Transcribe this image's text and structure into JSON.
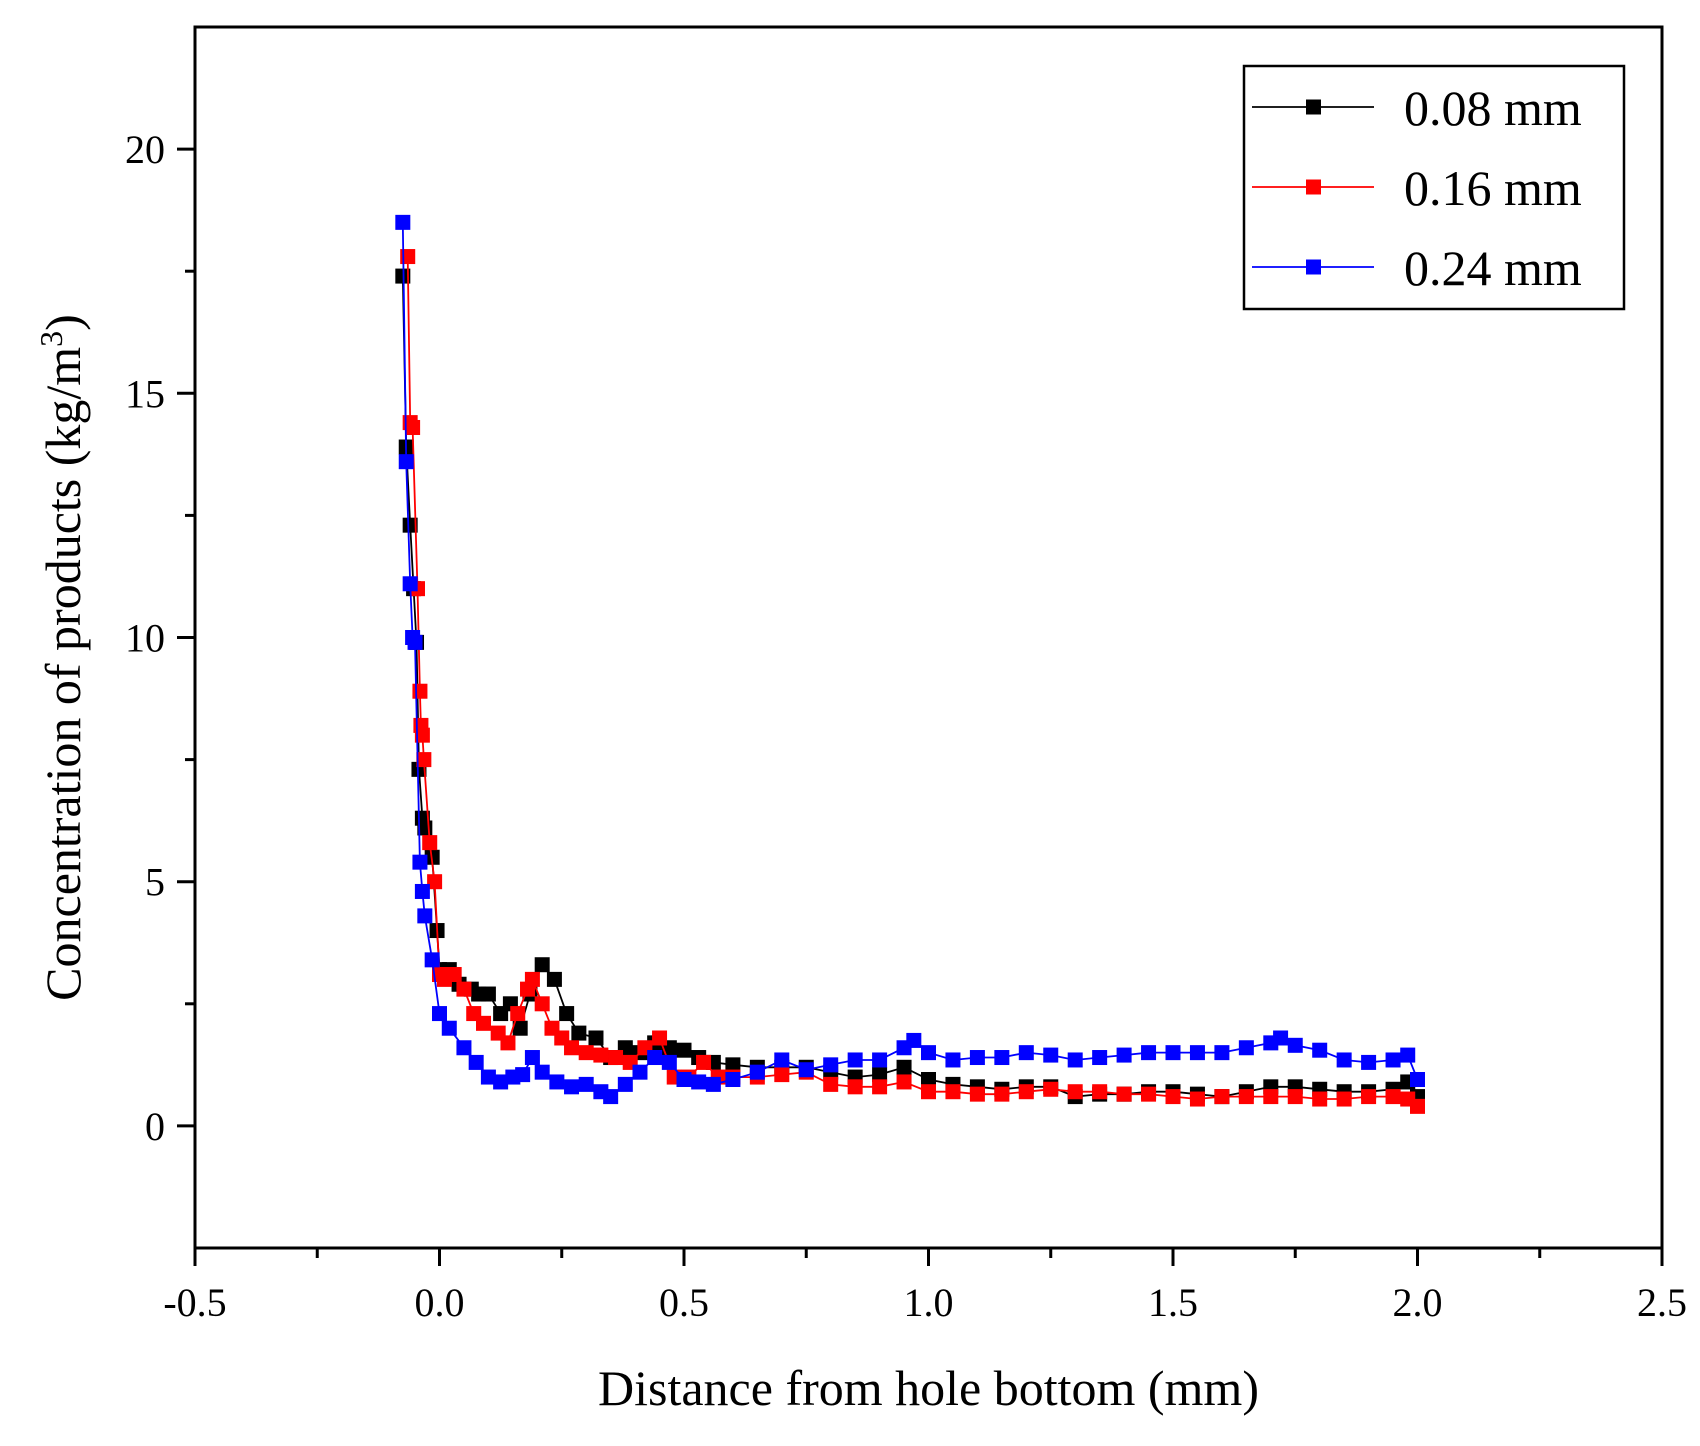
{
  "chart_data": {
    "type": "scatter",
    "title": "",
    "xlabel": "Distance from hole bottom (mm)",
    "ylabel_main": "Concentration of products (kg/m",
    "ylabel_sup": "3",
    "ylabel_end": ")",
    "xlim": [
      -0.5,
      2.5
    ],
    "ylim": [
      -2.5,
      22.5
    ],
    "xticks": [
      -0.5,
      0.0,
      0.5,
      1.0,
      1.5,
      2.0,
      2.5
    ],
    "xtick_labels": [
      "-0.5",
      "0.0",
      "0.5",
      "1.0",
      "1.5",
      "2.0",
      "2.5"
    ],
    "yticks": [
      0,
      5,
      10,
      15,
      20
    ],
    "ytick_labels": [
      "0",
      "5",
      "10",
      "15",
      "20"
    ],
    "grid": false,
    "legend_position": "top-right",
    "series": [
      {
        "name": "0.08 mm",
        "color": "#000000",
        "points": [
          [
            -0.075,
            17.4
          ],
          [
            -0.068,
            13.9
          ],
          [
            -0.06,
            12.3
          ],
          [
            -0.053,
            11.0
          ],
          [
            -0.047,
            9.9
          ],
          [
            -0.042,
            7.3
          ],
          [
            -0.035,
            6.3
          ],
          [
            -0.03,
            6.1
          ],
          [
            -0.015,
            5.5
          ],
          [
            -0.005,
            4.0
          ],
          [
            0.0,
            3.2
          ],
          [
            0.02,
            3.2
          ],
          [
            0.04,
            2.9
          ],
          [
            0.065,
            2.8
          ],
          [
            0.08,
            2.7
          ],
          [
            0.1,
            2.7
          ],
          [
            0.125,
            2.3
          ],
          [
            0.145,
            2.5
          ],
          [
            0.165,
            2.0
          ],
          [
            0.185,
            2.7
          ],
          [
            0.21,
            3.3
          ],
          [
            0.235,
            3.0
          ],
          [
            0.26,
            2.3
          ],
          [
            0.285,
            1.9
          ],
          [
            0.32,
            1.8
          ],
          [
            0.35,
            1.4
          ],
          [
            0.38,
            1.6
          ],
          [
            0.41,
            1.5
          ],
          [
            0.44,
            1.7
          ],
          [
            0.47,
            1.6
          ],
          [
            0.5,
            1.55
          ],
          [
            0.53,
            1.4
          ],
          [
            0.56,
            1.3
          ],
          [
            0.6,
            1.25
          ],
          [
            0.65,
            1.2
          ],
          [
            0.7,
            1.2
          ],
          [
            0.75,
            1.2
          ],
          [
            0.8,
            1.1
          ],
          [
            0.85,
            1.0
          ],
          [
            0.9,
            1.05
          ],
          [
            0.95,
            1.2
          ],
          [
            1.0,
            0.95
          ],
          [
            1.05,
            0.85
          ],
          [
            1.1,
            0.8
          ],
          [
            1.15,
            0.75
          ],
          [
            1.2,
            0.8
          ],
          [
            1.25,
            0.8
          ],
          [
            1.3,
            0.6
          ],
          [
            1.35,
            0.65
          ],
          [
            1.4,
            0.65
          ],
          [
            1.45,
            0.7
          ],
          [
            1.5,
            0.7
          ],
          [
            1.55,
            0.65
          ],
          [
            1.6,
            0.6
          ],
          [
            1.65,
            0.7
          ],
          [
            1.7,
            0.8
          ],
          [
            1.75,
            0.8
          ],
          [
            1.8,
            0.75
          ],
          [
            1.85,
            0.7
          ],
          [
            1.9,
            0.7
          ],
          [
            1.95,
            0.75
          ],
          [
            1.98,
            0.9
          ],
          [
            2.0,
            0.6
          ]
        ]
      },
      {
        "name": "0.16 mm",
        "color": "#ff0000",
        "points": [
          [
            -0.065,
            17.8
          ],
          [
            -0.06,
            14.4
          ],
          [
            -0.055,
            14.3
          ],
          [
            -0.045,
            11.0
          ],
          [
            -0.04,
            8.9
          ],
          [
            -0.038,
            8.2
          ],
          [
            -0.035,
            8.0
          ],
          [
            -0.032,
            7.5
          ],
          [
            -0.02,
            5.8
          ],
          [
            -0.01,
            5.0
          ],
          [
            0.0,
            3.1
          ],
          [
            0.01,
            3.0
          ],
          [
            0.03,
            3.1
          ],
          [
            0.05,
            2.8
          ],
          [
            0.07,
            2.3
          ],
          [
            0.09,
            2.1
          ],
          [
            0.12,
            1.9
          ],
          [
            0.14,
            1.7
          ],
          [
            0.16,
            2.3
          ],
          [
            0.18,
            2.8
          ],
          [
            0.19,
            3.0
          ],
          [
            0.21,
            2.5
          ],
          [
            0.23,
            2.0
          ],
          [
            0.25,
            1.8
          ],
          [
            0.27,
            1.6
          ],
          [
            0.3,
            1.5
          ],
          [
            0.33,
            1.45
          ],
          [
            0.36,
            1.4
          ],
          [
            0.39,
            1.3
          ],
          [
            0.42,
            1.6
          ],
          [
            0.45,
            1.8
          ],
          [
            0.48,
            1.0
          ],
          [
            0.51,
            1.0
          ],
          [
            0.54,
            1.3
          ],
          [
            0.57,
            1.0
          ],
          [
            0.6,
            1.0
          ],
          [
            0.65,
            1.0
          ],
          [
            0.7,
            1.05
          ],
          [
            0.75,
            1.1
          ],
          [
            0.8,
            0.85
          ],
          [
            0.85,
            0.8
          ],
          [
            0.9,
            0.8
          ],
          [
            0.95,
            0.9
          ],
          [
            1.0,
            0.7
          ],
          [
            1.05,
            0.7
          ],
          [
            1.1,
            0.65
          ],
          [
            1.15,
            0.65
          ],
          [
            1.2,
            0.7
          ],
          [
            1.25,
            0.75
          ],
          [
            1.3,
            0.7
          ],
          [
            1.35,
            0.7
          ],
          [
            1.4,
            0.65
          ],
          [
            1.45,
            0.65
          ],
          [
            1.5,
            0.6
          ],
          [
            1.55,
            0.55
          ],
          [
            1.6,
            0.6
          ],
          [
            1.65,
            0.6
          ],
          [
            1.7,
            0.6
          ],
          [
            1.75,
            0.6
          ],
          [
            1.8,
            0.55
          ],
          [
            1.85,
            0.55
          ],
          [
            1.9,
            0.6
          ],
          [
            1.95,
            0.6
          ],
          [
            1.98,
            0.55
          ],
          [
            2.0,
            0.4
          ]
        ]
      },
      {
        "name": "0.24 mm",
        "color": "#0000ff",
        "points": [
          [
            -0.075,
            18.5
          ],
          [
            -0.068,
            13.6
          ],
          [
            -0.06,
            11.1
          ],
          [
            -0.055,
            10.0
          ],
          [
            -0.05,
            9.9
          ],
          [
            -0.04,
            5.4
          ],
          [
            -0.035,
            4.8
          ],
          [
            -0.03,
            4.3
          ],
          [
            -0.015,
            3.4
          ],
          [
            0.0,
            2.3
          ],
          [
            0.02,
            2.0
          ],
          [
            0.05,
            1.6
          ],
          [
            0.075,
            1.3
          ],
          [
            0.1,
            1.0
          ],
          [
            0.125,
            0.9
          ],
          [
            0.15,
            1.0
          ],
          [
            0.17,
            1.05
          ],
          [
            0.19,
            1.4
          ],
          [
            0.21,
            1.1
          ],
          [
            0.24,
            0.9
          ],
          [
            0.27,
            0.8
          ],
          [
            0.3,
            0.85
          ],
          [
            0.33,
            0.7
          ],
          [
            0.35,
            0.6
          ],
          [
            0.38,
            0.85
          ],
          [
            0.41,
            1.1
          ],
          [
            0.44,
            1.4
          ],
          [
            0.47,
            1.3
          ],
          [
            0.5,
            0.95
          ],
          [
            0.53,
            0.9
          ],
          [
            0.56,
            0.85
          ],
          [
            0.6,
            0.95
          ],
          [
            0.65,
            1.1
          ],
          [
            0.7,
            1.35
          ],
          [
            0.75,
            1.15
          ],
          [
            0.8,
            1.25
          ],
          [
            0.85,
            1.35
          ],
          [
            0.9,
            1.35
          ],
          [
            0.95,
            1.6
          ],
          [
            0.97,
            1.75
          ],
          [
            1.0,
            1.5
          ],
          [
            1.05,
            1.35
          ],
          [
            1.1,
            1.4
          ],
          [
            1.15,
            1.4
          ],
          [
            1.2,
            1.5
          ],
          [
            1.25,
            1.45
          ],
          [
            1.3,
            1.35
          ],
          [
            1.35,
            1.4
          ],
          [
            1.4,
            1.45
          ],
          [
            1.45,
            1.5
          ],
          [
            1.5,
            1.5
          ],
          [
            1.55,
            1.5
          ],
          [
            1.6,
            1.5
          ],
          [
            1.65,
            1.6
          ],
          [
            1.7,
            1.7
          ],
          [
            1.72,
            1.8
          ],
          [
            1.75,
            1.65
          ],
          [
            1.8,
            1.55
          ],
          [
            1.85,
            1.35
          ],
          [
            1.9,
            1.3
          ],
          [
            1.95,
            1.35
          ],
          [
            1.98,
            1.45
          ],
          [
            2.0,
            0.95
          ]
        ]
      }
    ]
  }
}
